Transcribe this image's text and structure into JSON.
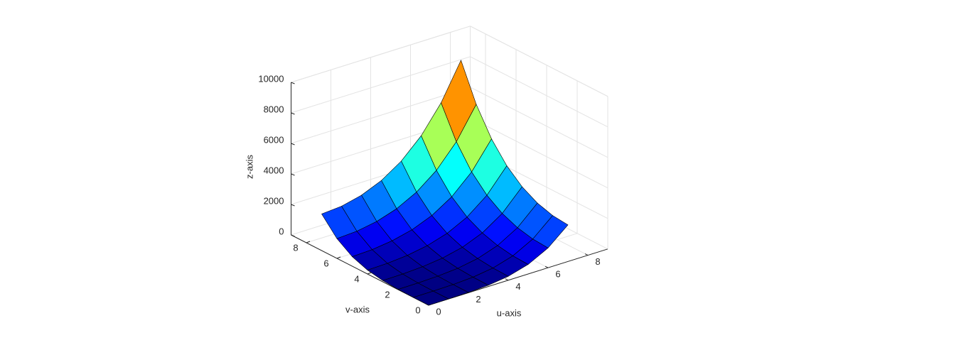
{
  "chart_data": {
    "type": "surface",
    "xlabel": "u-axis",
    "ylabel": "v-axis",
    "zlabel": "z-axis",
    "x": [
      0,
      1,
      2,
      3,
      4,
      5,
      6,
      7
    ],
    "y": [
      0,
      1,
      2,
      3,
      4,
      5,
      6,
      7
    ],
    "z": [
      [
        0,
        1,
        16,
        81,
        256,
        625,
        1296,
        2401
      ],
      [
        1,
        4,
        25,
        100,
        289,
        676,
        1369,
        2500
      ],
      [
        16,
        25,
        64,
        169,
        400,
        841,
        1600,
        2809
      ],
      [
        81,
        100,
        169,
        324,
        625,
        1156,
        2025,
        3364
      ],
      [
        256,
        289,
        400,
        625,
        1024,
        1681,
        2704,
        4225
      ],
      [
        625,
        676,
        841,
        1156,
        1681,
        2500,
        3721,
        5476
      ],
      [
        1296,
        1369,
        1600,
        2025,
        2704,
        3721,
        5184,
        7225
      ],
      [
        2401,
        2500,
        2809,
        3364,
        4225,
        5476,
        7225,
        9604
      ]
    ],
    "xlim": [
      0,
      9
    ],
    "ylim": [
      0,
      9
    ],
    "zlim": [
      0,
      10000
    ],
    "xticks": [
      0,
      2,
      4,
      6,
      8
    ],
    "yticks": [
      0,
      2,
      4,
      6,
      8
    ],
    "zticks": [
      0,
      2000,
      4000,
      6000,
      8000,
      10000
    ],
    "grid": true,
    "colormap": "jet",
    "edgecolor": "#000000"
  }
}
